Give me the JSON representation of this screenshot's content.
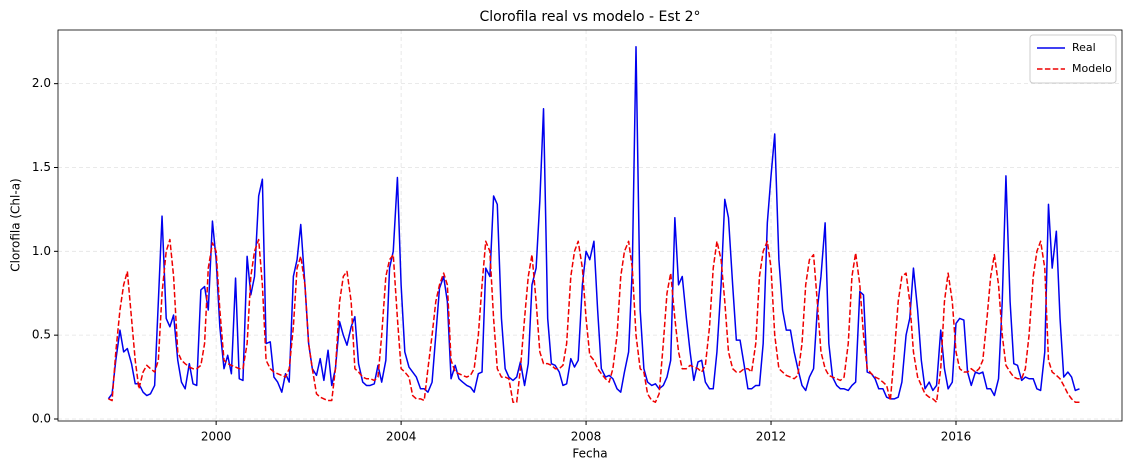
{
  "chart_data": {
    "type": "line",
    "title": "Clorofila real vs modelo - Est 2°",
    "xlabel": "Fecha",
    "ylabel": "Clorofila (Chl-a)",
    "xlim": [
      1996.58,
      2019.59
    ],
    "ylim": [
      -0.012,
      2.32
    ],
    "xticks": [
      2000,
      2004,
      2008,
      2012,
      2016
    ],
    "yticks": [
      {
        "value": 0,
        "label": "0.0"
      },
      0.5,
      {
        "value": 1,
        "label": "1.0"
      },
      1.5,
      {
        "value": 2,
        "label": "2.0"
      }
    ],
    "grid": true,
    "legend": "upper right",
    "x": [
      1997.67,
      1997.75,
      1997.83,
      1997.92,
      1998.0,
      1998.08,
      1998.17,
      1998.25,
      1998.33,
      1998.42,
      1998.5,
      1998.58,
      1998.67,
      1998.75,
      1998.83,
      1998.92,
      1999.0,
      1999.08,
      1999.17,
      1999.25,
      1999.33,
      1999.42,
      1999.5,
      1999.58,
      1999.67,
      1999.75,
      1999.83,
      1999.92,
      2000.0,
      2000.08,
      2000.17,
      2000.25,
      2000.33,
      2000.42,
      2000.5,
      2000.58,
      2000.67,
      2000.75,
      2000.83,
      2000.92,
      2001.0,
      2001.08,
      2001.17,
      2001.25,
      2001.33,
      2001.42,
      2001.5,
      2001.58,
      2001.67,
      2001.75,
      2001.83,
      2001.92,
      2002.0,
      2002.08,
      2002.17,
      2002.25,
      2002.33,
      2002.42,
      2002.5,
      2002.58,
      2002.67,
      2002.75,
      2002.83,
      2002.92,
      2003.0,
      2003.08,
      2003.17,
      2003.25,
      2003.33,
      2003.42,
      2003.5,
      2003.58,
      2003.67,
      2003.75,
      2003.83,
      2003.92,
      2004.0,
      2004.08,
      2004.17,
      2004.25,
      2004.33,
      2004.42,
      2004.5,
      2004.58,
      2004.67,
      2004.75,
      2004.83,
      2004.92,
      2005.0,
      2005.08,
      2005.17,
      2005.25,
      2005.33,
      2005.42,
      2005.5,
      2005.58,
      2005.67,
      2005.75,
      2005.83,
      2005.92,
      2006.0,
      2006.08,
      2006.17,
      2006.25,
      2006.33,
      2006.42,
      2006.5,
      2006.58,
      2006.67,
      2006.75,
      2006.83,
      2006.92,
      2007.0,
      2007.08,
      2007.17,
      2007.25,
      2007.33,
      2007.42,
      2007.5,
      2007.58,
      2007.67,
      2007.75,
      2007.83,
      2007.92,
      2008.0,
      2008.08,
      2008.17,
      2008.25,
      2008.33,
      2008.42,
      2008.5,
      2008.58,
      2008.67,
      2008.75,
      2008.83,
      2008.92,
      2009.0,
      2009.08,
      2009.17,
      2009.25,
      2009.33,
      2009.42,
      2009.5,
      2009.58,
      2009.67,
      2009.75,
      2009.83,
      2009.92,
      2010.0,
      2010.08,
      2010.17,
      2010.25,
      2010.33,
      2010.42,
      2010.5,
      2010.58,
      2010.67,
      2010.75,
      2010.83,
      2010.92,
      2011.0,
      2011.08,
      2011.17,
      2011.25,
      2011.33,
      2011.42,
      2011.5,
      2011.58,
      2011.67,
      2011.75,
      2011.83,
      2011.92,
      2012.0,
      2012.08,
      2012.17,
      2012.25,
      2012.33,
      2012.42,
      2012.5,
      2012.58,
      2012.67,
      2012.75,
      2012.83,
      2012.92,
      2013.0,
      2013.08,
      2013.17,
      2013.25,
      2013.33,
      2013.42,
      2013.5,
      2013.58,
      2013.67,
      2013.75,
      2013.83,
      2013.92,
      2014.0,
      2014.08,
      2014.17,
      2014.25,
      2014.33,
      2014.42,
      2014.5,
      2014.58,
      2014.67,
      2014.75,
      2014.83,
      2014.92,
      2015.0,
      2015.08,
      2015.17,
      2015.25,
      2015.33,
      2015.42,
      2015.5,
      2015.58,
      2015.67,
      2015.75,
      2015.83,
      2015.92,
      2016.0,
      2016.08,
      2016.17,
      2016.25,
      2016.33,
      2016.42,
      2016.5,
      2016.58,
      2016.67,
      2016.75,
      2016.83,
      2016.92,
      2017.0,
      2017.08,
      2017.17,
      2017.25,
      2017.33,
      2017.42,
      2017.5,
      2017.58,
      2017.67,
      2017.75,
      2017.83,
      2017.92,
      2018.0,
      2018.08,
      2018.17,
      2018.25,
      2018.33,
      2018.42,
      2018.5,
      2018.58,
      2018.67
    ],
    "series": [
      {
        "name": "Real",
        "color": "#0000ee",
        "dash": "solid",
        "values": [
          0.12,
          0.15,
          0.35,
          0.53,
          0.4,
          0.42,
          0.33,
          0.21,
          0.21,
          0.16,
          0.14,
          0.15,
          0.2,
          0.7,
          1.21,
          0.6,
          0.55,
          0.62,
          0.35,
          0.22,
          0.18,
          0.33,
          0.21,
          0.2,
          0.77,
          0.79,
          0.65,
          1.18,
          0.95,
          0.55,
          0.3,
          0.38,
          0.27,
          0.84,
          0.24,
          0.23,
          0.97,
          0.74,
          0.85,
          1.33,
          1.43,
          0.45,
          0.46,
          0.25,
          0.22,
          0.16,
          0.27,
          0.22,
          0.85,
          0.95,
          1.16,
          0.8,
          0.45,
          0.3,
          0.26,
          0.36,
          0.23,
          0.41,
          0.2,
          0.3,
          0.58,
          0.5,
          0.44,
          0.55,
          0.61,
          0.33,
          0.22,
          0.2,
          0.2,
          0.21,
          0.32,
          0.22,
          0.35,
          0.9,
          1.0,
          1.44,
          0.8,
          0.4,
          0.31,
          0.28,
          0.25,
          0.18,
          0.18,
          0.16,
          0.22,
          0.5,
          0.78,
          0.85,
          0.7,
          0.24,
          0.32,
          0.24,
          0.22,
          0.2,
          0.19,
          0.16,
          0.27,
          0.28,
          0.9,
          0.85,
          1.33,
          1.28,
          0.6,
          0.3,
          0.25,
          0.23,
          0.25,
          0.34,
          0.2,
          0.33,
          0.8,
          0.9,
          1.3,
          1.85,
          0.6,
          0.33,
          0.32,
          0.28,
          0.2,
          0.21,
          0.36,
          0.31,
          0.35,
          0.8,
          1.0,
          0.95,
          1.06,
          0.65,
          0.3,
          0.25,
          0.26,
          0.24,
          0.18,
          0.16,
          0.28,
          0.4,
          0.9,
          2.22,
          0.65,
          0.3,
          0.22,
          0.2,
          0.21,
          0.18,
          0.2,
          0.25,
          0.35,
          1.2,
          0.8,
          0.85,
          0.6,
          0.4,
          0.23,
          0.34,
          0.35,
          0.22,
          0.18,
          0.18,
          0.4,
          0.8,
          1.31,
          1.2,
          0.8,
          0.47,
          0.47,
          0.32,
          0.18,
          0.18,
          0.2,
          0.2,
          0.45,
          1.17,
          1.45,
          1.7,
          0.95,
          0.65,
          0.53,
          0.53,
          0.4,
          0.3,
          0.2,
          0.17,
          0.25,
          0.3,
          0.65,
          0.85,
          1.17,
          0.45,
          0.25,
          0.2,
          0.18,
          0.18,
          0.17,
          0.2,
          0.22,
          0.76,
          0.74,
          0.28,
          0.27,
          0.24,
          0.18,
          0.18,
          0.13,
          0.12,
          0.12,
          0.13,
          0.22,
          0.5,
          0.6,
          0.9,
          0.65,
          0.35,
          0.18,
          0.22,
          0.17,
          0.2,
          0.53,
          0.3,
          0.18,
          0.22,
          0.57,
          0.6,
          0.59,
          0.28,
          0.2,
          0.28,
          0.27,
          0.28,
          0.18,
          0.18,
          0.14,
          0.24,
          0.7,
          1.45,
          0.7,
          0.33,
          0.32,
          0.23,
          0.25,
          0.24,
          0.24,
          0.18,
          0.17,
          0.4,
          1.28,
          0.9,
          1.12,
          0.6,
          0.25,
          0.28,
          0.25,
          0.17,
          0.18
        ]
      },
      {
        "name": "Modelo",
        "color": "#ee0000",
        "dash": "dashed",
        "values": [
          0.12,
          0.11,
          0.4,
          0.65,
          0.8,
          0.88,
          0.6,
          0.35,
          0.18,
          0.28,
          0.32,
          0.3,
          0.28,
          0.35,
          0.75,
          1.0,
          1.07,
          0.85,
          0.4,
          0.35,
          0.33,
          0.31,
          0.3,
          0.3,
          0.32,
          0.45,
          0.9,
          1.05,
          1.0,
          0.65,
          0.35,
          0.33,
          0.32,
          0.31,
          0.3,
          0.3,
          0.45,
          0.85,
          1.0,
          1.07,
          0.8,
          0.35,
          0.3,
          0.28,
          0.27,
          0.26,
          0.25,
          0.3,
          0.55,
          0.9,
          0.97,
          0.8,
          0.45,
          0.3,
          0.15,
          0.13,
          0.12,
          0.11,
          0.11,
          0.3,
          0.7,
          0.85,
          0.88,
          0.7,
          0.3,
          0.28,
          0.25,
          0.24,
          0.24,
          0.23,
          0.25,
          0.5,
          0.85,
          0.95,
          0.98,
          0.6,
          0.3,
          0.28,
          0.25,
          0.14,
          0.12,
          0.12,
          0.11,
          0.3,
          0.5,
          0.7,
          0.8,
          0.87,
          0.8,
          0.35,
          0.28,
          0.27,
          0.26,
          0.25,
          0.26,
          0.3,
          0.5,
          0.8,
          1.06,
          1.0,
          0.6,
          0.3,
          0.25,
          0.25,
          0.24,
          0.1,
          0.1,
          0.3,
          0.6,
          0.85,
          0.98,
          0.7,
          0.4,
          0.33,
          0.33,
          0.32,
          0.3,
          0.3,
          0.32,
          0.45,
          0.85,
          1.0,
          1.06,
          0.9,
          0.6,
          0.38,
          0.35,
          0.3,
          0.27,
          0.24,
          0.22,
          0.3,
          0.5,
          0.85,
          1.0,
          1.06,
          0.9,
          0.5,
          0.3,
          0.28,
          0.15,
          0.11,
          0.1,
          0.15,
          0.45,
          0.75,
          0.87,
          0.6,
          0.4,
          0.3,
          0.3,
          0.32,
          0.31,
          0.3,
          0.28,
          0.32,
          0.55,
          0.9,
          1.06,
          0.95,
          0.7,
          0.4,
          0.3,
          0.28,
          0.28,
          0.3,
          0.3,
          0.28,
          0.45,
          0.85,
          1.0,
          1.06,
          0.9,
          0.5,
          0.3,
          0.28,
          0.26,
          0.25,
          0.24,
          0.26,
          0.45,
          0.8,
          0.95,
          0.98,
          0.7,
          0.4,
          0.3,
          0.26,
          0.25,
          0.24,
          0.23,
          0.25,
          0.45,
          0.85,
          0.99,
          0.8,
          0.5,
          0.3,
          0.27,
          0.25,
          0.24,
          0.22,
          0.2,
          0.11,
          0.4,
          0.7,
          0.85,
          0.87,
          0.7,
          0.4,
          0.25,
          0.2,
          0.15,
          0.13,
          0.12,
          0.1,
          0.3,
          0.7,
          0.87,
          0.7,
          0.4,
          0.3,
          0.28,
          0.28,
          0.3,
          0.28,
          0.3,
          0.35,
          0.6,
          0.85,
          0.98,
          0.8,
          0.5,
          0.32,
          0.28,
          0.25,
          0.24,
          0.24,
          0.3,
          0.5,
          0.85,
          1.0,
          1.06,
          0.9,
          0.35,
          0.28,
          0.26,
          0.24,
          0.2,
          0.15,
          0.12,
          0.1,
          0.1
        ]
      }
    ]
  }
}
